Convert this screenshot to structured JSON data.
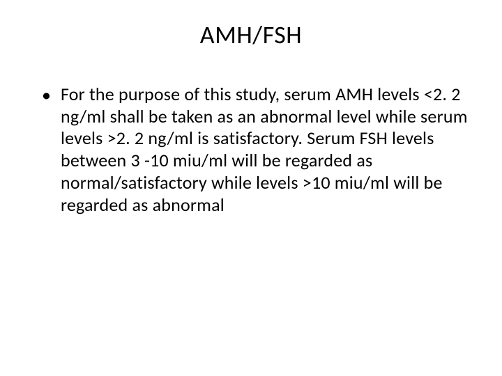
{
  "slide": {
    "title": "AMH/FSH",
    "bullet": "•",
    "body": "For the purpose of this study, serum AMH levels <2. 2 ng/ml shall be taken as an abnormal level while serum levels >2. 2 ng/ml is satisfactory.  Serum FSH levels between 3 -10 miu/ml will be regarded as normal/satisfactory while levels >10 miu/ml will be regarded as abnormal"
  },
  "style": {
    "background_color": "#ffffff",
    "text_color": "#000000",
    "title_fontsize": 36,
    "body_fontsize": 26,
    "font_family": "Calibri",
    "line_height": 1.22
  }
}
